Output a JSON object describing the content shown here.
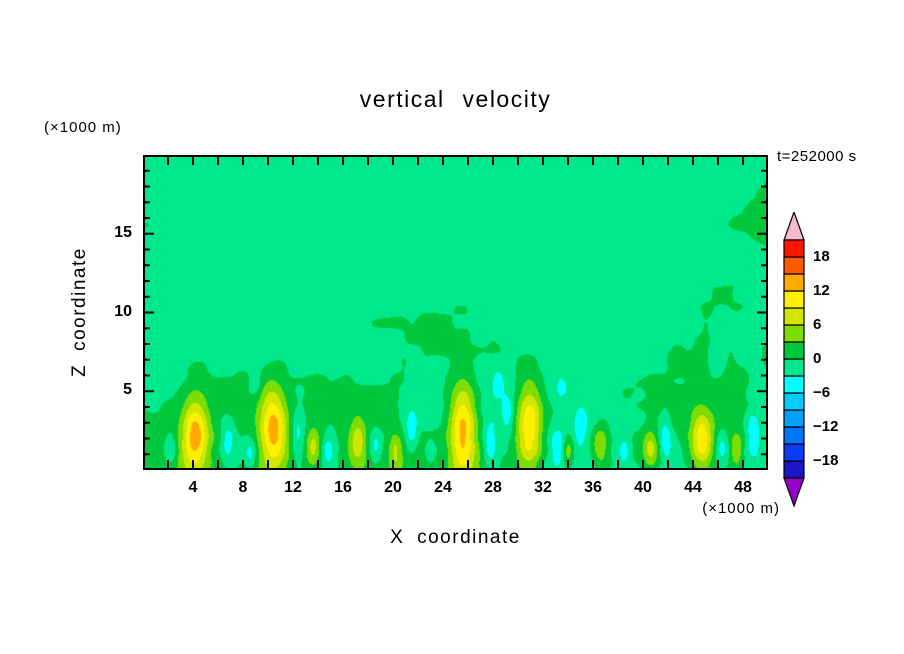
{
  "figure": {
    "title": "vertical velocity",
    "time_label": "t=252000 s",
    "left_unit_label": "(×1000 m)",
    "bottom_unit_label": "(×1000 m)",
    "x_axis_label": "X coordinate",
    "y_axis_label": "Z coordinate"
  },
  "style": {
    "background": "#FFFFFF",
    "text": "#000000",
    "frame": "#000000"
  },
  "chart_data": {
    "type": "heatmap",
    "subtype": "filled-contour",
    "title": "vertical velocity",
    "xlabel": "X coordinate",
    "ylabel": "Z coordinate",
    "x_unit": "(×1000 m)",
    "y_unit": "(×1000 m)",
    "time_annotation": "t=252000 s",
    "xlim": [
      0,
      50
    ],
    "ylim": [
      0,
      20
    ],
    "xticks": [
      4,
      8,
      12,
      16,
      20,
      24,
      28,
      32,
      36,
      40,
      44,
      48
    ],
    "yticks": [
      5,
      10,
      15
    ],
    "x_minor_tick_step": 2,
    "y_minor_tick_step": 1,
    "grid": false,
    "legend_position": "right-colorbar",
    "contour_levels": [
      -21,
      -18,
      -15,
      -12,
      -9,
      -6,
      -3,
      0,
      3,
      6,
      9,
      12,
      15,
      18,
      21
    ],
    "colorbar": {
      "labels": [
        "18",
        "12",
        "6",
        "0",
        "−6",
        "−12",
        "−18"
      ],
      "label_values": [
        18,
        12,
        6,
        0,
        -6,
        -12,
        -18
      ],
      "segment_colors_bottom_to_top": [
        "#1E14C8",
        "#0A3CFA",
        "#0073FF",
        "#00A0FF",
        "#00CDFF",
        "#00FFFF",
        "#00E88C",
        "#00C83C",
        "#7DDC00",
        "#D2E600",
        "#FFF000",
        "#FFAA00",
        "#FF5A00",
        "#FF1400"
      ],
      "under_arrow_color": "#9600C8",
      "over_arrow_color": "#F5B9CE"
    },
    "field": {
      "description": "Vertical cross-section of vertical velocity: broad weak values near zero (two interleaved green bands), convective updraft plumes with yellow cores in the lowest ~5 levels, and small cyan downdraft patches scattered below z~7.",
      "background_value": -0.55,
      "noise": {
        "seed": 11,
        "octaves": [
          {
            "cx": 9.0,
            "cz": 4.5,
            "amp": 1.0
          },
          {
            "cx": 3.5,
            "cz": 2.0,
            "amp": 0.5
          },
          {
            "cx": 1.3,
            "cz": 0.9,
            "amp": 0.38
          }
        ],
        "low_level_boost": 2.2,
        "boost_scale_z": 3.0
      },
      "updrafts": [
        {
          "x": 4.2,
          "z": 2.2,
          "amp": 12.8,
          "rx": 1.05,
          "rz": 2.4
        },
        {
          "x": 10.4,
          "z": 2.6,
          "amp": 13.0,
          "rx": 1.1,
          "rz": 2.7
        },
        {
          "x": 13.6,
          "z": 1.4,
          "amp": 6.5,
          "rx": 0.6,
          "rz": 1.2
        },
        {
          "x": 17.2,
          "z": 1.8,
          "amp": 7.5,
          "rx": 0.7,
          "rz": 1.5
        },
        {
          "x": 20.2,
          "z": 1.3,
          "amp": 6.2,
          "rx": 0.55,
          "rz": 1.1
        },
        {
          "x": 25.6,
          "z": 2.7,
          "amp": 13.4,
          "rx": 1.1,
          "rz": 3.0
        },
        {
          "x": 30.9,
          "z": 2.8,
          "amp": 13.0,
          "rx": 1.05,
          "rz": 2.8
        },
        {
          "x": 34.0,
          "z": 1.2,
          "amp": 6.0,
          "rx": 0.5,
          "rz": 1.0
        },
        {
          "x": 36.6,
          "z": 1.6,
          "amp": 7.0,
          "rx": 0.65,
          "rz": 1.3
        },
        {
          "x": 40.6,
          "z": 1.4,
          "amp": 6.6,
          "rx": 0.6,
          "rz": 1.2
        },
        {
          "x": 44.7,
          "z": 1.9,
          "amp": 10.5,
          "rx": 0.85,
          "rz": 1.8
        },
        {
          "x": 47.5,
          "z": 1.2,
          "amp": 6.0,
          "rx": 0.5,
          "rz": 1.0
        }
      ],
      "downdrafts": [
        {
          "x": 2.2,
          "z": 1.3,
          "amp": -4.5,
          "rx": 0.5,
          "rz": 1.0
        },
        {
          "x": 6.8,
          "z": 1.8,
          "amp": -5.0,
          "rx": 0.5,
          "rz": 1.3
        },
        {
          "x": 8.6,
          "z": 1.0,
          "amp": -4.0,
          "rx": 0.4,
          "rz": 0.8
        },
        {
          "x": 12.4,
          "z": 2.2,
          "amp": -4.8,
          "rx": 0.6,
          "rz": 1.4
        },
        {
          "x": 14.8,
          "z": 1.2,
          "amp": -4.2,
          "rx": 0.45,
          "rz": 0.9
        },
        {
          "x": 18.6,
          "z": 1.5,
          "amp": -4.4,
          "rx": 0.5,
          "rz": 1.0
        },
        {
          "x": 21.5,
          "z": 2.5,
          "amp": -5.0,
          "rx": 0.5,
          "rz": 1.6
        },
        {
          "x": 23.0,
          "z": 1.0,
          "amp": -4.0,
          "rx": 0.4,
          "rz": 0.8
        },
        {
          "x": 27.8,
          "z": 1.6,
          "amp": -5.2,
          "rx": 0.55,
          "rz": 1.3
        },
        {
          "x": 29.2,
          "z": 3.5,
          "amp": -4.2,
          "rx": 0.45,
          "rz": 1.2
        },
        {
          "x": 33.2,
          "z": 1.4,
          "amp": -4.6,
          "rx": 0.5,
          "rz": 1.1
        },
        {
          "x": 35.0,
          "z": 2.8,
          "amp": -4.2,
          "rx": 0.5,
          "rz": 1.3
        },
        {
          "x": 38.5,
          "z": 1.2,
          "amp": -4.3,
          "rx": 0.45,
          "rz": 0.9
        },
        {
          "x": 41.8,
          "z": 2.0,
          "amp": -5.0,
          "rx": 0.5,
          "rz": 1.4
        },
        {
          "x": 46.3,
          "z": 1.5,
          "amp": -4.6,
          "rx": 0.5,
          "rz": 1.1
        },
        {
          "x": 48.8,
          "z": 2.4,
          "amp": -5.0,
          "rx": 0.5,
          "rz": 1.5
        },
        {
          "x": 9.0,
          "z": 5.5,
          "amp": -3.0,
          "rx": 0.5,
          "rz": 0.8
        },
        {
          "x": 21.8,
          "z": 6.3,
          "amp": -3.2,
          "rx": 0.5,
          "rz": 0.8
        },
        {
          "x": 28.4,
          "z": 5.6,
          "amp": -3.4,
          "rx": 0.5,
          "rz": 0.9
        },
        {
          "x": 33.5,
          "z": 5.2,
          "amp": -3.0,
          "rx": 0.45,
          "rz": 0.7
        },
        {
          "x": 45.9,
          "z": 6.8,
          "amp": -3.2,
          "rx": 0.5,
          "rz": 0.8
        }
      ]
    }
  }
}
